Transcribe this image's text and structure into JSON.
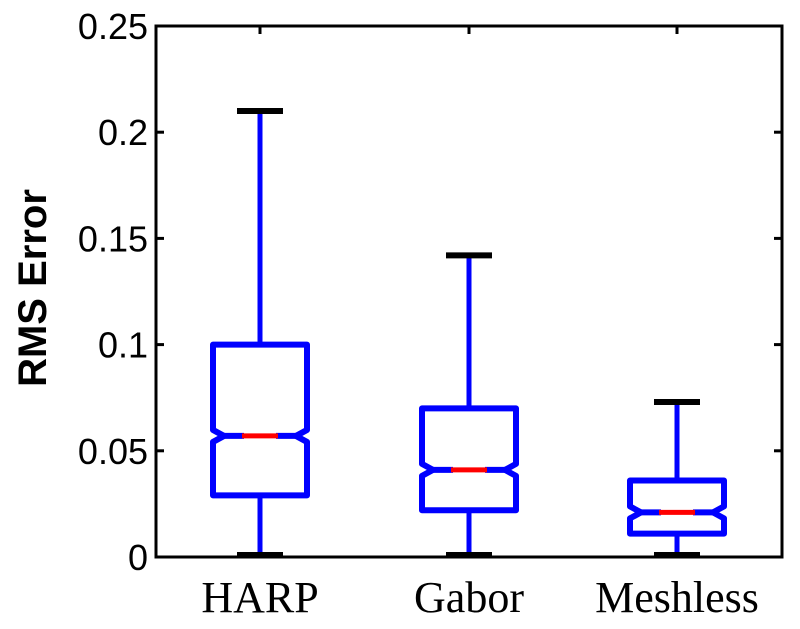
{
  "chart_data": {
    "type": "boxplot",
    "title": "",
    "xlabel": "",
    "ylabel": "RMS Error",
    "ylim": [
      0,
      0.25
    ],
    "yticks": [
      0,
      0.05,
      0.1,
      0.15,
      0.2,
      0.25
    ],
    "ytick_labels": [
      "0",
      "0.05",
      "0.1",
      "0.15",
      "0.2",
      "0.25"
    ],
    "categories": [
      "HARP",
      "Gabor",
      "Meshless"
    ],
    "grid": false,
    "box_frame": true,
    "notched": true,
    "series": [
      {
        "name": "HARP",
        "whisker_low": 0.0,
        "q1": 0.029,
        "median": 0.057,
        "q3": 0.1,
        "whisker_high": 0.21
      },
      {
        "name": "Gabor",
        "whisker_low": 0.0,
        "q1": 0.022,
        "median": 0.041,
        "q3": 0.07,
        "whisker_high": 0.142
      },
      {
        "name": "Meshless",
        "whisker_low": 0.0,
        "q1": 0.011,
        "median": 0.021,
        "q3": 0.036,
        "whisker_high": 0.073
      }
    ],
    "colors": {
      "box": "#0000ff",
      "median": "#ff0000",
      "whisker_cap": "#000000",
      "axis": "#000000"
    }
  }
}
